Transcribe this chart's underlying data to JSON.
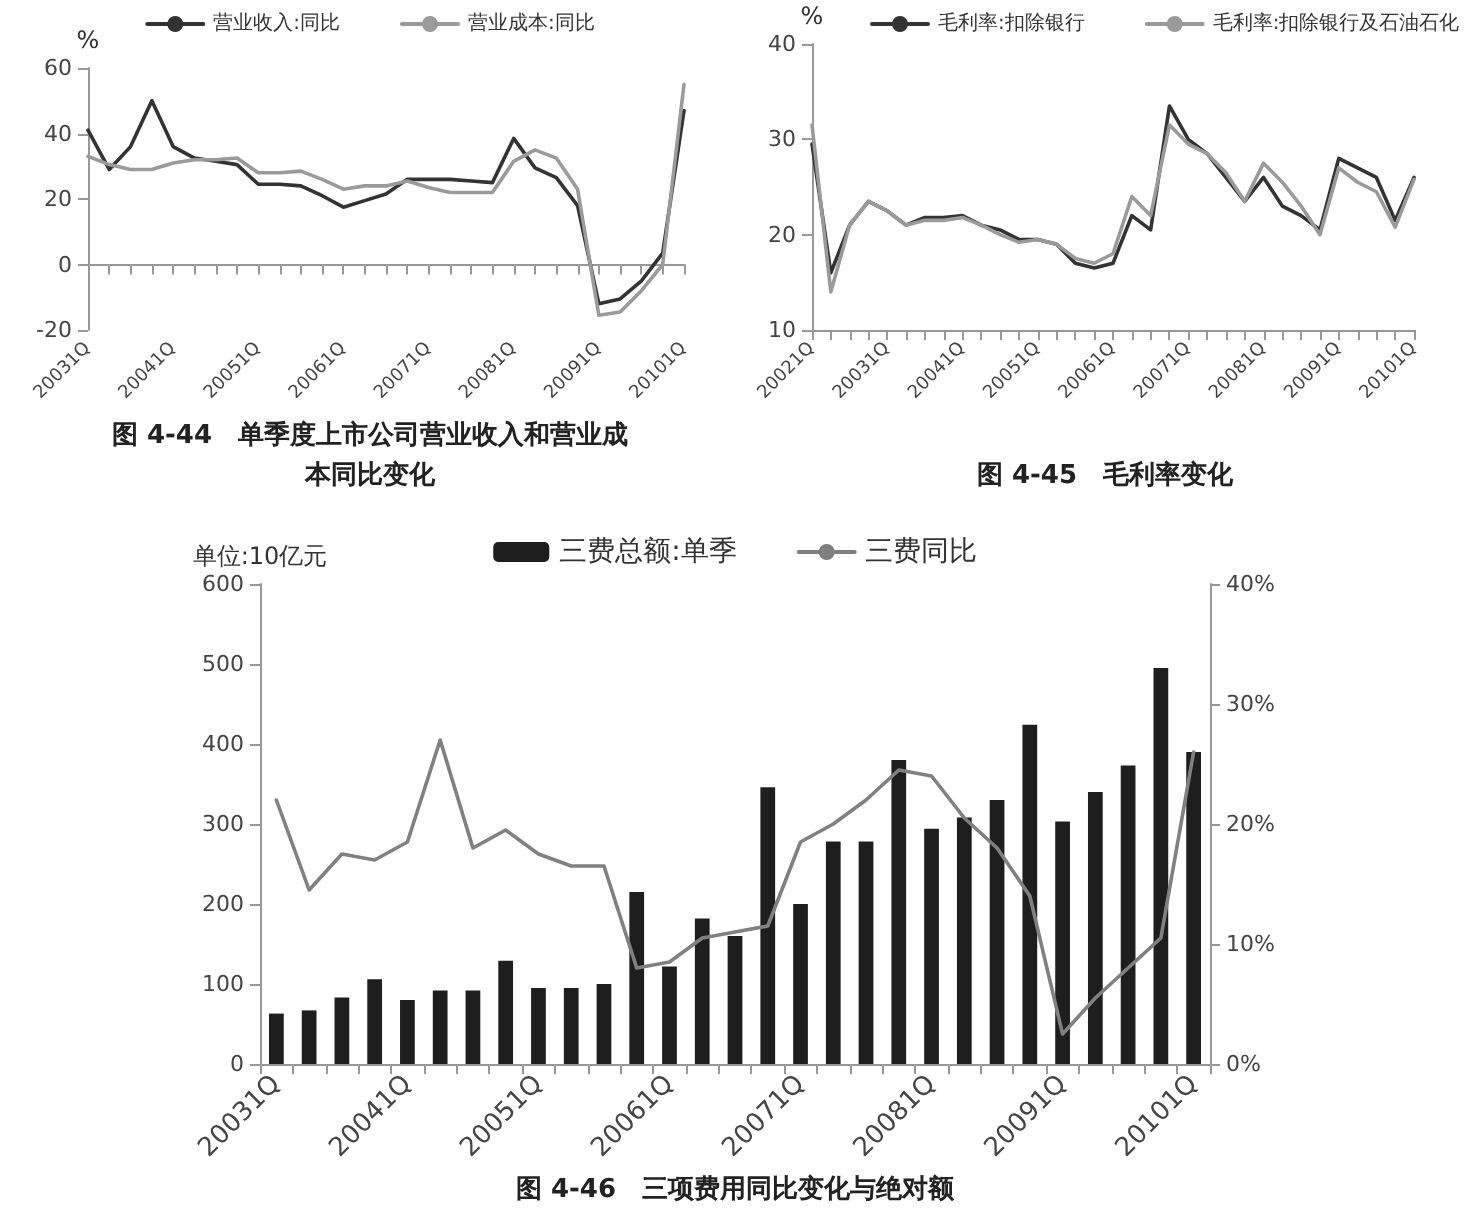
{
  "chart_data": [
    {
      "type": "line",
      "title": "图 4-44　单季度上市公司营业收入和营业成本同比变化",
      "ylabel": "%",
      "categories": [
        "20031Q",
        null,
        null,
        null,
        "20041Q",
        null,
        null,
        null,
        "20051Q",
        null,
        null,
        null,
        "20061Q",
        null,
        null,
        null,
        "20071Q",
        null,
        null,
        null,
        "20081Q",
        null,
        null,
        null,
        "20091Q",
        null,
        null,
        null,
        "20101Q"
      ],
      "series": [
        {
          "name": "营业收入:同比",
          "color": "#333333",
          "values": [
            41,
            29,
            36,
            50,
            36,
            32.5,
            31.5,
            30.5,
            24.5,
            24.5,
            24,
            21,
            17.5,
            19.5,
            21.5,
            26,
            26,
            26,
            25.5,
            25,
            38.5,
            29.5,
            26.5,
            18,
            -12,
            -10.5,
            -5,
            3.5,
            47
          ]
        },
        {
          "name": "营业成本:同比",
          "color": "#9a9a9a",
          "values": [
            33,
            30.5,
            29,
            29,
            31,
            32,
            32,
            32.5,
            28,
            28,
            28.5,
            26,
            23,
            24,
            24,
            25.5,
            23.5,
            22,
            22,
            22,
            31.5,
            35,
            32.5,
            23,
            -15.5,
            -14.5,
            -8,
            0,
            55
          ]
        }
      ],
      "ylim": [
        -20,
        60
      ],
      "yticks": [
        -20,
        0,
        20,
        40,
        60
      ],
      "legend": "top",
      "marker": "none"
    },
    {
      "type": "line",
      "title": "图 4-45　毛利率变化",
      "ylabel": "%",
      "categories": [
        "20021Q",
        null,
        null,
        null,
        "20031Q",
        null,
        null,
        null,
        "20041Q",
        null,
        null,
        null,
        "20051Q",
        null,
        null,
        null,
        "20061Q",
        null,
        null,
        null,
        "20071Q",
        null,
        null,
        null,
        "20081Q",
        null,
        null,
        null,
        "20091Q",
        null,
        null,
        null,
        "20101Q"
      ],
      "series": [
        {
          "name": "毛利率:扣除银行",
          "color": "#333333",
          "values": [
            29.5,
            16,
            21,
            23.5,
            22.5,
            21,
            21.8,
            21.8,
            22,
            21,
            20.5,
            19.5,
            19.5,
            19,
            17,
            16.5,
            17,
            22,
            20.5,
            33.5,
            30,
            28.5,
            26,
            23.5,
            26,
            23,
            22,
            20.5,
            28,
            27,
            26,
            21.5,
            26
          ]
        },
        {
          "name": "毛利率:扣除银行及石油石化",
          "color": "#9a9a9a",
          "values": [
            31.5,
            14,
            21,
            23.5,
            22.5,
            21,
            21.5,
            21.5,
            21.8,
            21,
            20,
            19.2,
            19.5,
            19,
            17.5,
            17,
            18,
            24,
            22,
            31.5,
            29.5,
            28.5,
            26.5,
            23.5,
            27.5,
            25.5,
            23,
            20,
            27,
            25.5,
            24.5,
            20.8,
            25.8
          ]
        }
      ],
      "ylim": [
        10,
        40
      ],
      "yticks": [
        10,
        20,
        30,
        40
      ],
      "legend": "top",
      "marker": "none"
    },
    {
      "type": "bar",
      "title": "图 4-46　三项费用同比变化与绝对额",
      "ylabel": "单位:10亿元",
      "categories": [
        "20031Q",
        null,
        null,
        null,
        "20041Q",
        null,
        null,
        null,
        "20051Q",
        null,
        null,
        null,
        "20061Q",
        null,
        null,
        null,
        "20071Q",
        null,
        null,
        null,
        "20081Q",
        null,
        null,
        null,
        "20091Q",
        null,
        null,
        null,
        "20101Q"
      ],
      "series": [
        {
          "name": "三费总额:单季",
          "color": "#1e1e1e",
          "values": [
            63,
            67,
            83,
            106,
            80,
            92,
            92,
            129,
            95,
            95,
            100,
            215,
            122,
            182,
            160,
            346,
            200,
            278,
            278,
            380,
            294,
            308,
            330,
            424,
            303,
            340,
            373,
            495,
            390
          ]
        },
        {
          "name": "三费同比",
          "type": "line",
          "axis": "y2",
          "color": "#808080",
          "values": [
            22,
            14.5,
            17.5,
            17,
            18.5,
            27,
            18,
            19.5,
            17.5,
            16.5,
            16.5,
            8,
            8.5,
            10.5,
            11,
            11.5,
            18.5,
            20,
            22,
            24.5,
            24,
            20.5,
            18,
            14,
            2.5,
            5.5,
            8,
            10.5,
            26
          ]
        }
      ],
      "ylim": [
        0,
        600
      ],
      "yticks": [
        0,
        100,
        200,
        300,
        400,
        500,
        600
      ],
      "y2lim": [
        0,
        40
      ],
      "y2ticks": [
        {
          "value": 0,
          "label": "0%"
        },
        {
          "value": 10,
          "label": "10%"
        },
        {
          "value": 20,
          "label": "20%"
        },
        {
          "value": 30,
          "label": "30%"
        },
        {
          "value": 40,
          "label": "40%"
        }
      ],
      "legend": "top",
      "marker": "none"
    }
  ]
}
